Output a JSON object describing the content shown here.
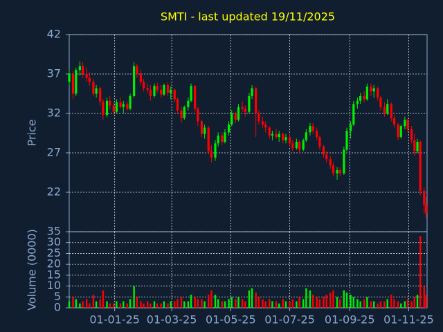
{
  "chart_data": [
    {
      "type": "candlestick",
      "title": "SMTI - last updated 19/11/2025",
      "ylabel": "Price",
      "up_color": "#00ee00",
      "down_color": "#ff0000",
      "grid": true,
      "xlim": [
        "2024-11-15",
        "2025-11-20"
      ],
      "xticks": [
        {
          "value": "2025-01-01",
          "label": "01-01-25"
        },
        {
          "value": "2025-03-01",
          "label": "01-03-25"
        },
        {
          "value": "2025-05-01",
          "label": "01-05-25"
        },
        {
          "value": "2025-07-01",
          "label": "01-07-25"
        },
        {
          "value": "2025-09-01",
          "label": "01-09-25"
        },
        {
          "value": "2025-11-01",
          "label": "01-11-25"
        }
      ],
      "ylim": [
        17,
        42
      ],
      "yticks": [
        22,
        27,
        32,
        37,
        42
      ],
      "x": [
        "2024-11-15",
        "2024-11-19",
        "2024-11-22",
        "2024-11-26",
        "2024-11-29",
        "2024-12-03",
        "2024-12-06",
        "2024-12-10",
        "2024-12-13",
        "2024-12-17",
        "2024-12-20",
        "2024-12-24",
        "2024-12-27",
        "2024-12-31",
        "2025-01-03",
        "2025-01-07",
        "2025-01-10",
        "2025-01-14",
        "2025-01-17",
        "2025-01-21",
        "2025-01-24",
        "2025-01-28",
        "2025-01-31",
        "2025-02-04",
        "2025-02-07",
        "2025-02-11",
        "2025-02-14",
        "2025-02-18",
        "2025-02-21",
        "2025-02-25",
        "2025-02-28",
        "2025-03-04",
        "2025-03-07",
        "2025-03-11",
        "2025-03-14",
        "2025-03-18",
        "2025-03-21",
        "2025-03-25",
        "2025-03-28",
        "2025-04-01",
        "2025-04-04",
        "2025-04-08",
        "2025-04-11",
        "2025-04-15",
        "2025-04-18",
        "2025-04-22",
        "2025-04-25",
        "2025-04-29",
        "2025-05-02",
        "2025-05-06",
        "2025-05-09",
        "2025-05-13",
        "2025-05-16",
        "2025-05-20",
        "2025-05-23",
        "2025-05-27",
        "2025-05-30",
        "2025-06-03",
        "2025-06-06",
        "2025-06-10",
        "2025-06-13",
        "2025-06-17",
        "2025-06-20",
        "2025-06-24",
        "2025-06-27",
        "2025-07-01",
        "2025-07-04",
        "2025-07-08",
        "2025-07-11",
        "2025-07-15",
        "2025-07-18",
        "2025-07-22",
        "2025-07-25",
        "2025-07-29",
        "2025-08-01",
        "2025-08-05",
        "2025-08-08",
        "2025-08-12",
        "2025-08-15",
        "2025-08-19",
        "2025-08-22",
        "2025-08-26",
        "2025-08-29",
        "2025-09-02",
        "2025-09-05",
        "2025-09-09",
        "2025-09-12",
        "2025-09-16",
        "2025-09-19",
        "2025-09-23",
        "2025-09-26",
        "2025-09-30",
        "2025-10-03",
        "2025-10-07",
        "2025-10-10",
        "2025-10-14",
        "2025-10-17",
        "2025-10-21",
        "2025-10-24",
        "2025-10-28",
        "2025-10-31",
        "2025-11-04",
        "2025-11-07",
        "2025-11-10",
        "2025-11-13",
        "2025-11-17",
        "2025-11-19"
      ],
      "open": [
        36.0,
        37.0,
        34.5,
        37.5,
        38.0,
        37.0,
        36.5,
        36.0,
        34.5,
        35.2,
        33.5,
        31.8,
        33.6,
        33.0,
        32.2,
        33.4,
        32.8,
        33.2,
        32.6,
        34.2,
        38.0,
        37.0,
        36.0,
        35.2,
        35.0,
        34.2,
        35.5,
        35.0,
        34.4,
        35.6,
        34.6,
        35.0,
        33.8,
        32.4,
        31.4,
        32.8,
        33.6,
        35.5,
        32.6,
        31.0,
        29.4,
        30.2,
        27.2,
        26.4,
        28.2,
        29.2,
        28.4,
        29.6,
        30.6,
        32.0,
        31.2,
        32.8,
        32.6,
        32.2,
        34.2,
        35.2,
        32.0,
        31.0,
        30.6,
        30.2,
        29.2,
        29.4,
        29.0,
        29.4,
        28.6,
        29.0,
        28.2,
        27.6,
        28.4,
        27.4,
        28.6,
        29.6,
        30.4,
        29.8,
        29.0,
        27.8,
        26.8,
        26.2,
        25.4,
        24.4,
        24.8,
        24.4,
        27.4,
        29.8,
        30.6,
        33.2,
        33.6,
        34.2,
        33.8,
        35.4,
        34.8,
        35.2,
        34.0,
        32.8,
        32.0,
        33.2,
        31.4,
        30.6,
        29.0,
        30.4,
        31.2,
        30.0,
        28.6,
        27.2,
        28.4,
        22.2,
        20.4
      ],
      "high": [
        37.5,
        37.4,
        37.8,
        38.6,
        38.5,
        37.8,
        37.2,
        36.4,
        35.6,
        35.4,
        33.8,
        34.0,
        34.2,
        33.4,
        33.8,
        34.0,
        33.6,
        33.5,
        34.5,
        38.5,
        38.3,
        37.6,
        36.4,
        35.8,
        35.6,
        35.8,
        35.9,
        35.6,
        35.8,
        36.0,
        35.4,
        35.2,
        34.0,
        32.8,
        33.0,
        34.0,
        35.8,
        35.6,
        32.8,
        31.2,
        30.6,
        30.4,
        28.0,
        28.6,
        29.6,
        29.6,
        30.0,
        31.0,
        32.4,
        32.2,
        33.2,
        33.6,
        33.0,
        34.6,
        35.6,
        35.4,
        32.4,
        31.6,
        31.0,
        30.4,
        29.8,
        30.0,
        29.8,
        29.6,
        29.4,
        29.4,
        28.6,
        28.8,
        28.6,
        28.8,
        30.0,
        30.8,
        30.8,
        30.2,
        29.2,
        28.0,
        27.2,
        26.6,
        25.8,
        25.2,
        25.2,
        27.8,
        30.2,
        31.0,
        33.6,
        34.0,
        34.6,
        34.8,
        35.8,
        35.8,
        35.6,
        35.4,
        34.2,
        33.4,
        33.8,
        33.4,
        31.8,
        30.8,
        30.6,
        31.6,
        31.4,
        30.4,
        29.4,
        28.8,
        28.6,
        22.6,
        21.4
      ],
      "low": [
        35.5,
        33.8,
        34.2,
        36.8,
        36.5,
        36.0,
        35.5,
        34.2,
        34.0,
        33.0,
        31.2,
        31.5,
        32.5,
        31.8,
        32.0,
        32.6,
        32.0,
        32.3,
        32.4,
        34.0,
        36.5,
        35.6,
        34.8,
        34.6,
        33.6,
        34.0,
        34.6,
        34.0,
        34.2,
        34.2,
        33.8,
        33.4,
        32.0,
        30.8,
        31.2,
        32.4,
        33.4,
        32.2,
        30.4,
        29.0,
        28.8,
        26.8,
        25.8,
        26.0,
        27.8,
        28.0,
        28.2,
        29.2,
        30.4,
        30.8,
        31.0,
        32.2,
        31.6,
        32.0,
        33.8,
        29.0,
        30.6,
        30.2,
        29.6,
        28.8,
        28.6,
        28.8,
        28.4,
        28.2,
        28.2,
        27.8,
        27.2,
        27.4,
        27.0,
        27.2,
        28.4,
        29.2,
        29.4,
        28.6,
        27.4,
        26.4,
        25.8,
        25.0,
        24.0,
        23.6,
        24.0,
        24.2,
        27.2,
        28.8,
        30.4,
        32.6,
        33.2,
        33.4,
        33.6,
        34.2,
        34.0,
        33.6,
        32.4,
        31.6,
        31.8,
        31.0,
        30.2,
        28.6,
        28.8,
        30.0,
        29.6,
        28.2,
        26.6,
        27.0,
        21.6,
        19.2,
        18.6
      ],
      "close": [
        37.0,
        34.5,
        37.5,
        38.0,
        37.0,
        36.5,
        36.0,
        34.5,
        35.2,
        33.5,
        31.8,
        33.6,
        33.0,
        32.2,
        33.4,
        32.8,
        33.2,
        32.6,
        34.2,
        38.0,
        37.0,
        36.0,
        35.2,
        35.0,
        34.2,
        35.5,
        35.0,
        34.4,
        35.6,
        34.6,
        35.0,
        33.8,
        32.4,
        31.4,
        32.8,
        33.6,
        35.5,
        32.6,
        31.0,
        29.4,
        30.2,
        27.2,
        26.4,
        28.2,
        29.2,
        28.4,
        29.6,
        30.6,
        32.0,
        31.2,
        32.8,
        32.6,
        32.2,
        34.2,
        35.2,
        32.0,
        31.0,
        30.6,
        30.2,
        29.2,
        29.4,
        29.0,
        29.4,
        28.6,
        29.0,
        28.2,
        27.6,
        28.4,
        27.4,
        28.6,
        29.6,
        30.4,
        29.8,
        29.0,
        27.8,
        26.8,
        26.2,
        25.4,
        24.4,
        24.8,
        24.4,
        27.4,
        29.8,
        30.6,
        33.2,
        33.6,
        34.2,
        33.8,
        35.4,
        34.8,
        35.2,
        34.0,
        32.8,
        32.0,
        33.2,
        31.4,
        30.6,
        29.0,
        30.4,
        31.2,
        30.0,
        28.6,
        27.2,
        28.4,
        22.2,
        20.4,
        19.4
      ]
    },
    {
      "type": "bar",
      "ylabel": "Volume (0000)",
      "ylim": [
        0,
        35
      ],
      "yticks": [
        0,
        5,
        10,
        15,
        20,
        25,
        30,
        35
      ],
      "values": [
        3,
        5,
        4,
        2,
        3,
        4,
        2,
        6,
        3,
        4,
        8,
        3,
        2,
        2,
        3,
        2,
        3,
        2,
        4,
        10,
        5,
        3,
        2,
        3,
        2,
        3,
        2,
        2,
        3,
        2,
        3,
        3,
        4,
        5,
        3,
        3,
        6,
        5,
        4,
        4,
        3,
        6,
        8,
        6,
        4,
        3,
        3,
        4,
        5,
        4,
        5,
        4,
        3,
        8,
        9,
        7,
        5,
        4,
        3,
        4,
        3,
        3,
        2,
        4,
        3,
        3,
        4,
        3,
        5,
        4,
        9,
        8,
        6,
        5,
        4,
        5,
        6,
        7,
        8,
        5,
        4,
        8,
        7,
        6,
        5,
        4,
        3,
        4,
        5,
        3,
        3,
        2,
        3,
        3,
        4,
        6,
        4,
        3,
        2,
        3,
        4,
        3,
        5,
        6,
        33,
        10,
        6
      ]
    }
  ]
}
